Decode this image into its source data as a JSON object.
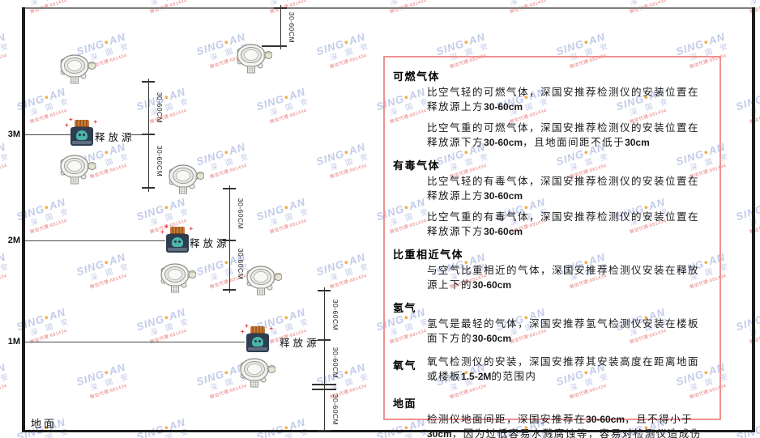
{
  "watermark": {
    "brand_left": "SING",
    "brand_dot": "●",
    "brand_right": "AN",
    "subtext": "深 国 安",
    "contact": "微信代理:681434",
    "brand_color": "#bcc6e8",
    "dot_color": "#f2a83a",
    "contact_color": "#e06a6a"
  },
  "diagram": {
    "ground_label": "地面",
    "release_source_label": "释放源",
    "dimension_label": "30-60CM",
    "levels": [
      {
        "label": "3M"
      },
      {
        "label": "2M"
      },
      {
        "label": "1M"
      }
    ]
  },
  "panel": {
    "border_color": "#f09090",
    "sections": [
      {
        "heading": "可燃气体",
        "paragraphs": [
          "比空气轻的可燃气体，深国安推荐检测仪的安装位置在释放源上方30-60cm",
          "比空气重的可燃气体，深国安推荐检测仪的安装位置在释放源下方30-60cm，且地面间距不低于30cm"
        ]
      },
      {
        "heading": "有毒气体",
        "paragraphs": [
          "比空气轻的有毒气体，深国安推荐检测仪的安装位置在释放源上方30-60cm",
          "比空气重的有毒气体，深国安推荐检测仪的安装位置在释放源下方30-60cm"
        ]
      },
      {
        "heading": "比重相近气体",
        "paragraphs": [
          "与空气比重相近的气体，深国安推荐检测仪安装在释放源上下的30-60cm"
        ]
      },
      {
        "heading": "氢气",
        "paragraphs": [
          "氢气是最轻的气体，深国安推荐氢气检测仪安装在楼板面下方的30-60cm"
        ]
      },
      {
        "heading": "氧气",
        "inline": true,
        "paragraphs": [
          "氧气检测仪的安装，深国安推荐其安装高度在距离地面或楼板1.5-2M的范围内"
        ]
      },
      {
        "heading": "地面",
        "paragraphs": [
          "检测仪地面间距，深国安推荐在30-60cm，且不得小于30cm，因为过低容易水溅腐蚀等，容易对检测仪造成伤害"
        ]
      }
    ]
  }
}
